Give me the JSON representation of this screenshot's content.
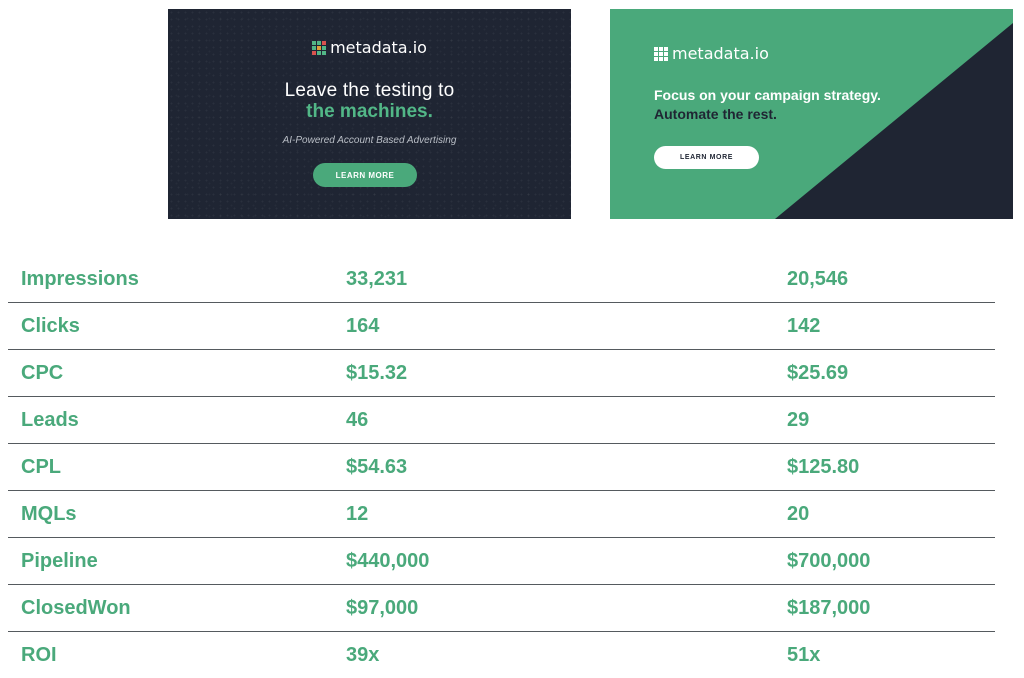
{
  "colors": {
    "green": "#4aa97b",
    "dark": "#1f2533"
  },
  "ads": [
    {
      "brand": "metadata.io",
      "headline_line1": "Leave the testing to",
      "headline_line2": "the machines.",
      "subtitle": "AI-Powered Account Based Advertising",
      "button": "LEARN MORE"
    },
    {
      "brand": "metadata.io",
      "headline_line1": "Focus on your campaign strategy.",
      "headline_line2": "Automate the rest.",
      "button": "LEARN MORE"
    }
  ],
  "metrics": [
    {
      "label": "Impressions",
      "ad1": "33,231",
      "ad2": "20,546"
    },
    {
      "label": "Clicks",
      "ad1": "164",
      "ad2": "142"
    },
    {
      "label": "CPC",
      "ad1": "$15.32",
      "ad2": "$25.69"
    },
    {
      "label": "Leads",
      "ad1": "46",
      "ad2": "29"
    },
    {
      "label": "CPL",
      "ad1": "$54.63",
      "ad2": "$125.80"
    },
    {
      "label": "MQLs",
      "ad1": "12",
      "ad2": "20"
    },
    {
      "label": "Pipeline",
      "ad1": "$440,000",
      "ad2": "$700,000"
    },
    {
      "label": "ClosedWon",
      "ad1": "$97,000",
      "ad2": "$187,000"
    },
    {
      "label": "ROI",
      "ad1": "39x",
      "ad2": "51x"
    }
  ]
}
